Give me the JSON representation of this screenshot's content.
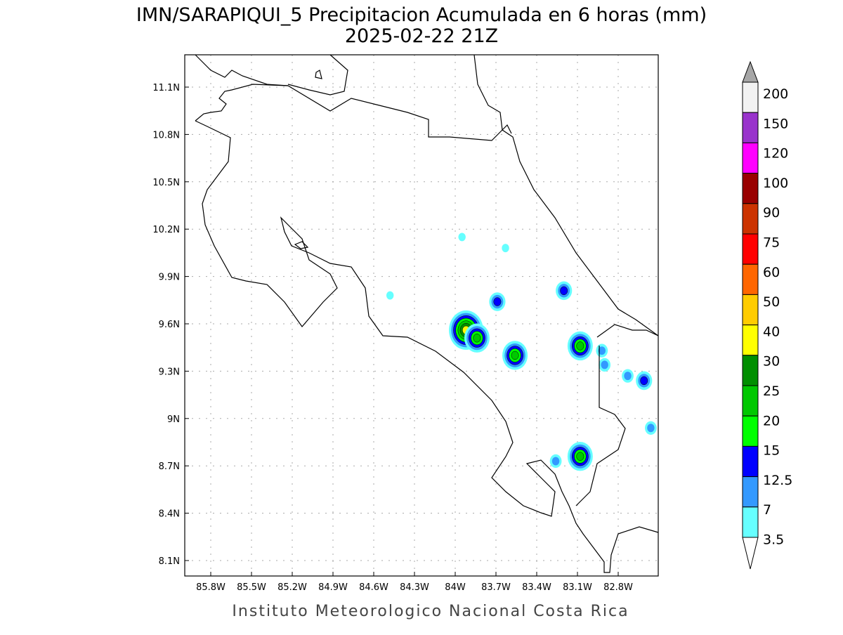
{
  "title": "IMN/SARAPIQUI_5 Precipitacion Acumulada en 6 horas (mm)",
  "subtitle": "2025-02-22 21Z",
  "footer": "Instituto Meteorologico Nacional Costa Rica",
  "lon_ticks": [
    {
      "value": -85.8,
      "label": "85.8W"
    },
    {
      "value": -85.5,
      "label": "85.5W"
    },
    {
      "value": -85.2,
      "label": "85.2W"
    },
    {
      "value": -84.9,
      "label": "84.9W"
    },
    {
      "value": -84.6,
      "label": "84.6W"
    },
    {
      "value": -84.3,
      "label": "84.3W"
    },
    {
      "value": -84.0,
      "label": "84W"
    },
    {
      "value": -83.7,
      "label": "83.7W"
    },
    {
      "value": -83.4,
      "label": "83.4W"
    },
    {
      "value": -83.1,
      "label": "83.1W"
    },
    {
      "value": -82.8,
      "label": "82.8W"
    }
  ],
  "lat_ticks": [
    {
      "value": 11.1,
      "label": "11.1N"
    },
    {
      "value": 10.8,
      "label": "10.8N"
    },
    {
      "value": 10.5,
      "label": "10.5N"
    },
    {
      "value": 10.2,
      "label": "10.2N"
    },
    {
      "value": 9.9,
      "label": "9.9N"
    },
    {
      "value": 9.6,
      "label": "9.6N"
    },
    {
      "value": 9.3,
      "label": "9.3N"
    },
    {
      "value": 9.0,
      "label": "9N"
    },
    {
      "value": 8.7,
      "label": "8.7N"
    },
    {
      "value": 8.4,
      "label": "8.4N"
    },
    {
      "value": 8.1,
      "label": "8.1N"
    }
  ],
  "colorbar": {
    "labels": [
      "200",
      "150",
      "120",
      "100",
      "90",
      "75",
      "60",
      "50",
      "40",
      "30",
      "25",
      "20",
      "15",
      "12.5",
      "7",
      "3.5"
    ],
    "colors": [
      "#f2f2f2",
      "#9933cc",
      "#ff00ff",
      "#990000",
      "#cc3300",
      "#ff0000",
      "#ff6600",
      "#ffcc00",
      "#ffff00",
      "#008f00",
      "#00c800",
      "#00ff00",
      "#0000ff",
      "#3399ff",
      "#66ffff"
    ],
    "over_color": "#a6a6a6"
  },
  "precip_cells": [
    {
      "lon": -83.92,
      "lat": 9.56,
      "max_level": 6
    },
    {
      "lon": -83.84,
      "lat": 9.51,
      "max_level": 4
    },
    {
      "lon": -83.56,
      "lat": 9.4,
      "max_level": 4
    },
    {
      "lon": -83.69,
      "lat": 9.74,
      "max_level": 2
    },
    {
      "lon": -83.2,
      "lat": 9.81,
      "max_level": 2
    },
    {
      "lon": -83.08,
      "lat": 9.46,
      "max_level": 4
    },
    {
      "lon": -83.08,
      "lat": 8.76,
      "max_level": 4
    },
    {
      "lon": -83.26,
      "lat": 8.73,
      "max_level": 1
    },
    {
      "lon": -82.61,
      "lat": 9.24,
      "max_level": 2
    },
    {
      "lon": -82.73,
      "lat": 9.27,
      "max_level": 1
    },
    {
      "lon": -82.92,
      "lat": 9.43,
      "max_level": 1
    },
    {
      "lon": -82.9,
      "lat": 9.34,
      "max_level": 1
    },
    {
      "lon": -83.95,
      "lat": 10.15,
      "max_level": 0
    },
    {
      "lon": -83.63,
      "lat": 10.08,
      "max_level": 0
    },
    {
      "lon": -84.48,
      "lat": 9.78,
      "max_level": 0
    },
    {
      "lon": -82.56,
      "lat": 8.94,
      "max_level": 1
    }
  ]
}
